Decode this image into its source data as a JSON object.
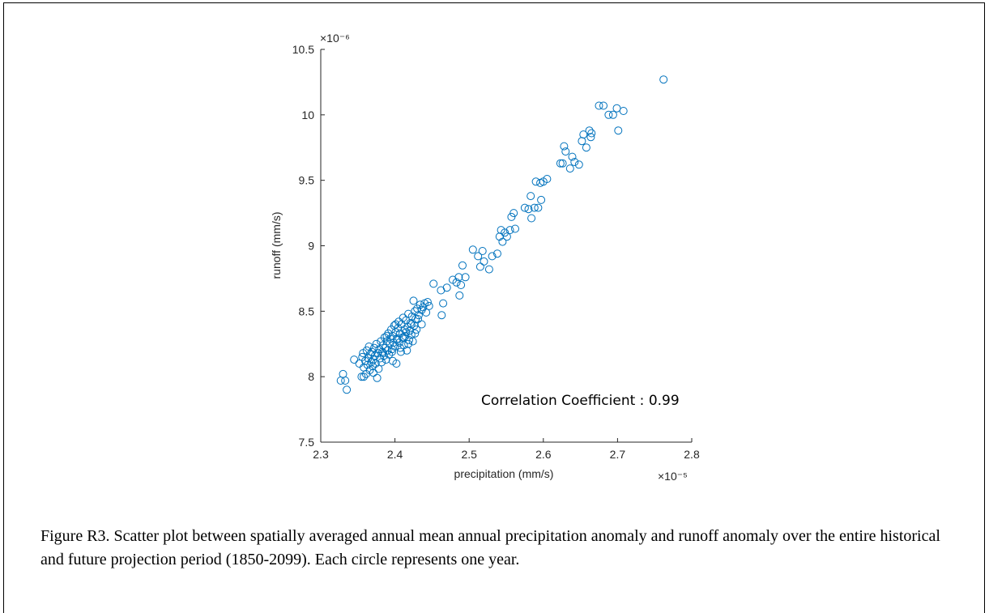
{
  "chart_data": {
    "type": "scatter",
    "xlabel": "precipitation (mm/s)",
    "ylabel": "runoff (mm/s)",
    "x_exponent": "×10⁻⁵",
    "y_exponent": "×10⁻⁶",
    "x_tick_labels": [
      "2.3",
      "2.4",
      "2.5",
      "2.6",
      "2.7",
      "2.8"
    ],
    "y_tick_labels": [
      "7.5",
      "8",
      "8.5",
      "9",
      "9.5",
      "10",
      "10.5"
    ],
    "xlim": [
      2.3e-05,
      2.8e-05
    ],
    "ylim": [
      7.5e-06,
      1.05e-05
    ],
    "marker": "open-circle",
    "marker_color": "#0072BD",
    "grid": false,
    "annotation": "Correlation Coefficient : 0.99",
    "points": [
      [
        2.327e-05,
        7.97e-06
      ],
      [
        2.33e-05,
        8.02e-06
      ],
      [
        2.333e-05,
        7.97e-06
      ],
      [
        2.335e-05,
        7.9e-06
      ],
      [
        2.345e-05,
        8.13e-06
      ],
      [
        2.352e-05,
        8.1e-06
      ],
      [
        2.355e-05,
        8e-06
      ],
      [
        2.356e-05,
        8.15e-06
      ],
      [
        2.357e-05,
        8.18e-06
      ],
      [
        2.358e-05,
        8.07e-06
      ],
      [
        2.36e-05,
        8.12e-06
      ],
      [
        2.361e-05,
        8.02e-06
      ],
      [
        2.362e-05,
        8.2e-06
      ],
      [
        2.363e-05,
        8.09e-06
      ],
      [
        2.364e-05,
        8.14e-06
      ],
      [
        2.365e-05,
        8.23e-06
      ],
      [
        2.366e-05,
        8.05e-06
      ],
      [
        2.367e-05,
        8.17e-06
      ],
      [
        2.368e-05,
        8.11e-06
      ],
      [
        2.369e-05,
        8.19e-06
      ],
      [
        2.37e-05,
        8.08e-06
      ],
      [
        2.371e-05,
        8.13e-06
      ],
      [
        2.372e-05,
        8.22e-06
      ],
      [
        2.373e-05,
        8.16e-06
      ],
      [
        2.374e-05,
        8.1e-06
      ],
      [
        2.375e-05,
        8.25e-06
      ],
      [
        2.376e-05,
        7.99e-06
      ],
      [
        2.377e-05,
        8.18e-06
      ],
      [
        2.378e-05,
        8.06e-06
      ],
      [
        2.379e-05,
        8.21e-06
      ],
      [
        2.38e-05,
        8.14e-06
      ],
      [
        2.381e-05,
        8.27e-06
      ],
      [
        2.382e-05,
        8.11e-06
      ],
      [
        2.383e-05,
        8.19e-06
      ],
      [
        2.384e-05,
        8.24e-06
      ],
      [
        2.385e-05,
        8.16e-06
      ],
      [
        2.386e-05,
        8.3e-06
      ],
      [
        2.387e-05,
        8.22e-06
      ],
      [
        2.388e-05,
        8.13e-06
      ],
      [
        2.389e-05,
        8.27e-06
      ],
      [
        2.39e-05,
        8.2e-06
      ],
      [
        2.391e-05,
        8.33e-06
      ],
      [
        2.392e-05,
        8.17e-06
      ],
      [
        2.393e-05,
        8.25e-06
      ],
      [
        2.394e-05,
        8.29e-06
      ],
      [
        2.395e-05,
        8.36e-06
      ],
      [
        2.396e-05,
        8.21e-06
      ],
      [
        2.397e-05,
        8.31e-06
      ],
      [
        2.398e-05,
        8.26e-06
      ],
      [
        2.399e-05,
        8.39e-06
      ],
      [
        2.4e-05,
        8.23e-06
      ],
      [
        2.401e-05,
        8.34e-06
      ],
      [
        2.402e-05,
        8.1e-06
      ],
      [
        2.403e-05,
        8.29e-06
      ],
      [
        2.404e-05,
        8.37e-06
      ],
      [
        2.405e-05,
        8.42e-06
      ],
      [
        2.406e-05,
        8.26e-06
      ],
      [
        2.407e-05,
        8.33e-06
      ],
      [
        2.408e-05,
        8.19e-06
      ],
      [
        2.409e-05,
        8.4e-06
      ],
      [
        2.41e-05,
        8.3e-06
      ],
      [
        2.411e-05,
        8.45e-06
      ],
      [
        2.412e-05,
        8.24e-06
      ],
      [
        2.413e-05,
        8.36e-06
      ],
      [
        2.414e-05,
        8.31e-06
      ],
      [
        2.415e-05,
        8.43e-06
      ],
      [
        2.416e-05,
        8.2e-06
      ],
      [
        2.417e-05,
        8.38e-06
      ],
      [
        2.418e-05,
        8.48e-06
      ],
      [
        2.419e-05,
        8.28e-06
      ],
      [
        2.42e-05,
        8.35e-06
      ],
      [
        2.421e-05,
        8.41e-06
      ],
      [
        2.422e-05,
        8.32e-06
      ],
      [
        2.423e-05,
        8.46e-06
      ],
      [
        2.424e-05,
        8.27e-06
      ],
      [
        2.425e-05,
        8.58e-06
      ],
      [
        2.426e-05,
        8.39e-06
      ],
      [
        2.427e-05,
        8.5e-06
      ],
      [
        2.428e-05,
        8.44e-06
      ],
      [
        2.429e-05,
        8.36e-06
      ],
      [
        2.43e-05,
        8.52e-06
      ],
      [
        2.432e-05,
        8.47e-06
      ],
      [
        2.434e-05,
        8.55e-06
      ],
      [
        2.436e-05,
        8.4e-06
      ],
      [
        2.438e-05,
        8.53e-06
      ],
      [
        2.44e-05,
        8.56e-06
      ],
      [
        2.442e-05,
        8.49e-06
      ],
      [
        2.444e-05,
        8.57e-06
      ],
      [
        2.446e-05,
        8.54e-06
      ],
      [
        2.452e-05,
        8.71e-06
      ],
      [
        2.462e-05,
        8.66e-06
      ],
      [
        2.463e-05,
        8.47e-06
      ],
      [
        2.465e-05,
        8.56e-06
      ],
      [
        2.47e-05,
        8.68e-06
      ],
      [
        2.478e-05,
        8.74e-06
      ],
      [
        2.483e-05,
        8.72e-06
      ],
      [
        2.486e-05,
        8.76e-06
      ],
      [
        2.487e-05,
        8.62e-06
      ],
      [
        2.489e-05,
        8.7e-06
      ],
      [
        2.491e-05,
        8.85e-06
      ],
      [
        2.495e-05,
        8.76e-06
      ],
      [
        2.505e-05,
        8.97e-06
      ],
      [
        2.512e-05,
        8.92e-06
      ],
      [
        2.515e-05,
        8.84e-06
      ],
      [
        2.518e-05,
        8.96e-06
      ],
      [
        2.52e-05,
        8.88e-06
      ],
      [
        2.527e-05,
        8.82e-06
      ],
      [
        2.531e-05,
        8.92e-06
      ],
      [
        2.538e-05,
        8.94e-06
      ],
      [
        2.541e-05,
        9.07e-06
      ],
      [
        2.543e-05,
        9.12e-06
      ],
      [
        2.545e-05,
        9.03e-06
      ],
      [
        2.548e-05,
        9.1e-06
      ],
      [
        2.551e-05,
        9.07e-06
      ],
      [
        2.555e-05,
        9.12e-06
      ],
      [
        2.557e-05,
        9.22e-06
      ],
      [
        2.56e-05,
        9.25e-06
      ],
      [
        2.562e-05,
        9.13e-06
      ],
      [
        2.575e-05,
        9.29e-06
      ],
      [
        2.58e-05,
        9.28e-06
      ],
      [
        2.583e-05,
        9.38e-06
      ],
      [
        2.584e-05,
        9.21e-06
      ],
      [
        2.588e-05,
        9.29e-06
      ],
      [
        2.59e-05,
        9.49e-06
      ],
      [
        2.593e-05,
        9.29e-06
      ],
      [
        2.596e-05,
        9.48e-06
      ],
      [
        2.597e-05,
        9.35e-06
      ],
      [
        2.6e-05,
        9.49e-06
      ],
      [
        2.605e-05,
        9.51e-06
      ],
      [
        2.623e-05,
        9.63e-06
      ],
      [
        2.626e-05,
        9.63e-06
      ],
      [
        2.628e-05,
        9.76e-06
      ],
      [
        2.63e-05,
        9.72e-06
      ],
      [
        2.636e-05,
        9.59e-06
      ],
      [
        2.639e-05,
        9.68e-06
      ],
      [
        2.642e-05,
        9.64e-06
      ],
      [
        2.648e-05,
        9.62e-06
      ],
      [
        2.652e-05,
        9.8e-06
      ],
      [
        2.654e-05,
        9.85e-06
      ],
      [
        2.658e-05,
        9.75e-06
      ],
      [
        2.662e-05,
        9.88e-06
      ],
      [
        2.664e-05,
        9.83e-06
      ],
      [
        2.665e-05,
        9.86e-06
      ],
      [
        2.675e-05,
        1.007e-05
      ],
      [
        2.681e-05,
        1.007e-05
      ],
      [
        2.688e-05,
        1e-05
      ],
      [
        2.694e-05,
        1e-05
      ],
      [
        2.699e-05,
        1.005e-05
      ],
      [
        2.701e-05,
        9.88e-06
      ],
      [
        2.708e-05,
        1.003e-05
      ],
      [
        2.762e-05,
        1.027e-05
      ],
      [
        2.358e-05,
        8e-06
      ],
      [
        2.371e-05,
        8.03e-06
      ],
      [
        2.384e-05,
        8.18e-06
      ],
      [
        2.397e-05,
        8.12e-06
      ],
      [
        2.403e-05,
        8.28e-06
      ],
      [
        2.407e-05,
        8.22e-06
      ],
      [
        2.415e-05,
        8.34e-06
      ],
      [
        2.418e-05,
        8.25e-06
      ],
      [
        2.422e-05,
        8.4e-06
      ],
      [
        2.427e-05,
        8.33e-06
      ],
      [
        2.431e-05,
        8.44e-06
      ],
      [
        2.436e-05,
        8.51e-06
      ],
      [
        2.396e-05,
        8.19e-06
      ],
      [
        2.389e-05,
        8.31e-06
      ],
      [
        2.412e-05,
        8.3e-06
      ],
      [
        2.401e-05,
        8.4e-06
      ]
    ]
  },
  "caption": "Figure R3. Scatter plot between spatially averaged annual mean annual precipitation anomaly and runoff anomaly over the entire historical and future projection period (1850-2099). Each circle represents one year."
}
